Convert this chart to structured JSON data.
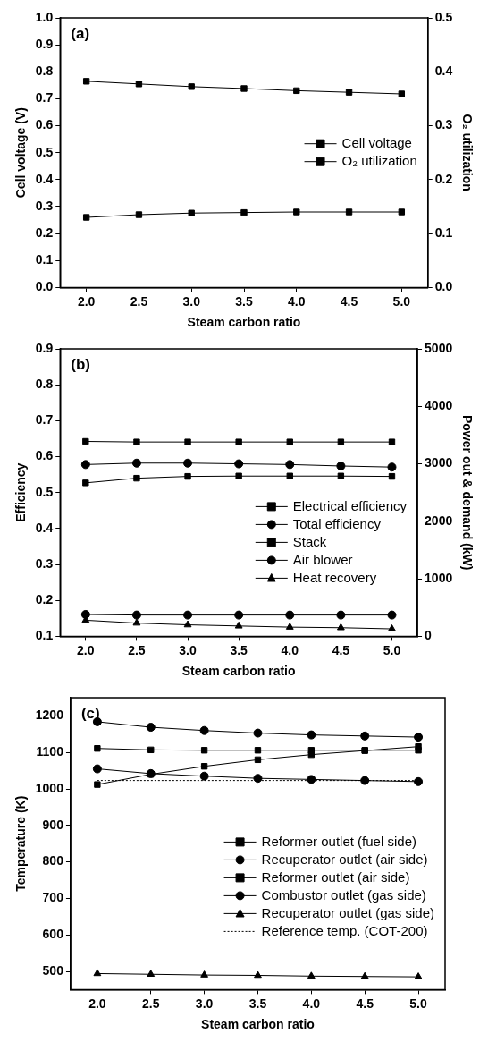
{
  "chart_data": [
    {
      "type": "line",
      "annotations": [
        "(a)"
      ],
      "xlabel": "Steam carbon ratio",
      "ylabel": "Cell voltage (V)",
      "y2label": "O₂ utilization",
      "x": [
        2.0,
        2.5,
        3.0,
        3.5,
        4.0,
        4.5,
        5.0
      ],
      "xlim": [
        1.75,
        5.25
      ],
      "xticks": [
        {
          "value": 2,
          "label": "2.0"
        },
        2.5,
        {
          "value": 3,
          "label": "3.0"
        },
        3.5,
        {
          "value": 4,
          "label": "4.0"
        },
        4.5,
        {
          "value": 5,
          "label": "5.0"
        }
      ],
      "ylim": [
        0,
        1
      ],
      "yticks": [
        {
          "value": 0,
          "label": "0.0"
        },
        0.1,
        0.2,
        0.3,
        0.4,
        0.5,
        0.6,
        0.7,
        0.8,
        0.9,
        {
          "value": 1,
          "label": "1.0"
        }
      ],
      "y2lim": [
        0,
        0.5
      ],
      "y2ticks": [
        {
          "value": 0,
          "label": "0.0"
        },
        0.1,
        0.2,
        0.3,
        0.4,
        0.5
      ],
      "grid": false,
      "legend": "center right",
      "series": [
        {
          "name": "Cell voltage",
          "color": "#000000",
          "marker": "square",
          "values": [
            0.765,
            0.755,
            0.745,
            0.738,
            0.73,
            0.724,
            0.718
          ]
        },
        {
          "name": "O₂ utilization",
          "color": "#000000",
          "marker": "square",
          "axis": "y2",
          "values": [
            0.13,
            0.135,
            0.138,
            0.139,
            0.14,
            0.14,
            0.14
          ]
        }
      ]
    },
    {
      "type": "line",
      "annotations": [
        "(b)"
      ],
      "xlabel": "Steam carbon ratio",
      "ylabel": "Efficiency",
      "y2label": "Power out & demand (kW)",
      "x": [
        2.0,
        2.5,
        3.0,
        3.5,
        4.0,
        4.5,
        5.0
      ],
      "xlim": [
        1.75,
        5.25
      ],
      "xticks": [
        {
          "value": 2,
          "label": "2.0"
        },
        2.5,
        {
          "value": 3,
          "label": "3.0"
        },
        3.5,
        {
          "value": 4,
          "label": "4.0"
        },
        4.5,
        {
          "value": 5,
          "label": "5.0"
        }
      ],
      "ylim": [
        0.1,
        0.9
      ],
      "yticks": [
        0.1,
        0.2,
        0.3,
        0.4,
        0.5,
        0.6,
        0.7,
        0.8,
        0.9
      ],
      "y2lim": [
        0,
        5000
      ],
      "y2ticks": [
        0,
        1000,
        2000,
        3000,
        4000,
        5000
      ],
      "grid": false,
      "legend": "bottom right",
      "series": [
        {
          "name": "Electrical efficiency",
          "color": "#000000",
          "marker": "square",
          "values": [
            0.527,
            0.54,
            0.545,
            0.546,
            0.546,
            0.546,
            0.545
          ]
        },
        {
          "name": "Total efficiency",
          "color": "#000000",
          "marker": "circle",
          "values": [
            0.578,
            0.582,
            0.582,
            0.58,
            0.578,
            0.574,
            0.571
          ]
        },
        {
          "name": "Stack",
          "color": "#000000",
          "marker": "square",
          "axis": "y2",
          "values": [
            3390,
            3380,
            3380,
            3380,
            3380,
            3380,
            3380
          ]
        },
        {
          "name": "Air blower",
          "color": "#000000",
          "marker": "circle",
          "axis": "y2",
          "values": [
            380,
            370,
            370,
            370,
            370,
            370,
            370
          ]
        },
        {
          "name": "Heat recovery",
          "color": "#000000",
          "marker": "triangle",
          "axis": "y2",
          "values": [
            280,
            230,
            200,
            180,
            160,
            150,
            130
          ]
        }
      ]
    },
    {
      "type": "line",
      "annotations": [
        "(c)"
      ],
      "xlabel": "Steam carbon ratio",
      "ylabel": "Temperature (K)",
      "x": [
        2.0,
        2.5,
        3.0,
        3.5,
        4.0,
        4.5,
        5.0
      ],
      "xlim": [
        1.75,
        5.25
      ],
      "xticks": [
        {
          "value": 2,
          "label": "2.0"
        },
        2.5,
        {
          "value": 3,
          "label": "3.0"
        },
        3.5,
        {
          "value": 4,
          "label": "4.0"
        },
        4.5,
        {
          "value": 5,
          "label": "5.0"
        }
      ],
      "ylim": [
        450,
        1250
      ],
      "yticks": [
        500,
        600,
        700,
        800,
        900,
        1000,
        1100,
        1200
      ],
      "grid": false,
      "legend": "bottom right",
      "series": [
        {
          "name": "Reformer outlet (fuel side)",
          "color": "#000000",
          "marker": "square",
          "values": [
            1012,
            1040,
            1062,
            1080,
            1094,
            1105,
            1116
          ]
        },
        {
          "name": "Recuperator outlet (air side)",
          "color": "#000000",
          "marker": "circle",
          "values": [
            1055,
            1042,
            1035,
            1029,
            1026,
            1023,
            1020
          ]
        },
        {
          "name": "Reformer outlet (air side)",
          "color": "#000000",
          "marker": "square",
          "values": [
            1111,
            1107,
            1106,
            1106,
            1106,
            1106,
            1106
          ]
        },
        {
          "name": "Combustor outlet (gas side)",
          "color": "#000000",
          "marker": "circle",
          "values": [
            1184,
            1169,
            1160,
            1153,
            1148,
            1145,
            1142
          ]
        },
        {
          "name": "Recuperator outlet (gas side)",
          "color": "#000000",
          "marker": "triangle",
          "values": [
            494,
            492,
            490,
            489,
            487,
            486,
            485
          ]
        },
        {
          "name": "Reference temp. (COT-200)",
          "color": "#000000",
          "marker": "none",
          "line_style": "dotted",
          "values": [
            1023,
            1023,
            1023,
            1023,
            1023,
            1023,
            1023
          ]
        }
      ]
    }
  ]
}
